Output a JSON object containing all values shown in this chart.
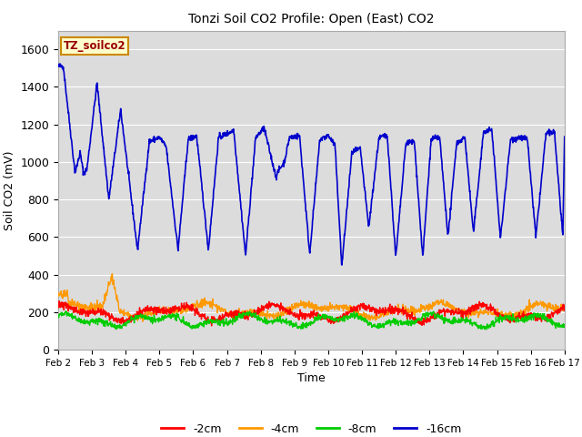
{
  "title": "Tonzi Soil CO2 Profile: Open (East) CO2",
  "xlabel": "Time",
  "ylabel": "Soil CO2 (mV)",
  "xlim": [
    0,
    15
  ],
  "ylim": [
    0,
    1700
  ],
  "yticks": [
    0,
    200,
    400,
    600,
    800,
    1000,
    1200,
    1400,
    1600
  ],
  "xtick_labels": [
    "Feb 2",
    "Feb 3",
    "Feb 4",
    "Feb 5",
    "Feb 6",
    "Feb 7",
    "Feb 8",
    "Feb 9",
    "Feb 10",
    "Feb 11",
    "Feb 12",
    "Feb 13",
    "Feb 14",
    "Feb 15",
    "Feb 16",
    "Feb 17"
  ],
  "background_color": "#dcdcdc",
  "legend_label": "TZ_soilco2",
  "legend_box_color": "#ffffcc",
  "legend_box_edge": "#cc8800",
  "line_colors": {
    "m2cm": "#ff0000",
    "m4cm": "#ff9900",
    "m8cm": "#00cc00",
    "m16cm": "#0000cc"
  },
  "legend_entries": [
    "-2cm",
    "-4cm",
    "-8cm",
    "-16cm"
  ],
  "figsize": [
    6.4,
    4.8
  ],
  "dpi": 100
}
